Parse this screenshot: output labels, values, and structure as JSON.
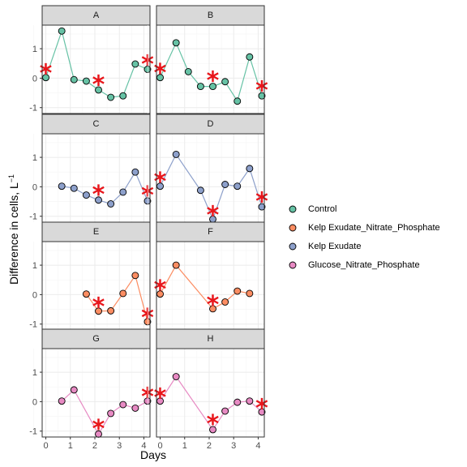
{
  "chart_data": {
    "type": "line",
    "xlabel": "Days",
    "ylabel_main": "Difference in cells, L",
    "ylabel_sup": "−1",
    "xlim": [
      -0.15,
      4.25
    ],
    "ylim": [
      -1.2,
      1.8
    ],
    "x_ticks": [
      0,
      1,
      2,
      3,
      4
    ],
    "y_ticks": [
      -1,
      0,
      1
    ],
    "grid": true,
    "legend_position": "right",
    "legend": [
      {
        "key": "control",
        "label": "Control",
        "color": "#66c2a5"
      },
      {
        "key": "kenp",
        "label": "Kelp Exudate_Nitrate_Phosphate",
        "color": "#fc8d62"
      },
      {
        "key": "ke",
        "label": "Kelp Exudate",
        "color": "#8da0cb"
      },
      {
        "key": "gnp",
        "label": "Glucose_Nitrate_Phosphate",
        "color": "#e78ac3"
      }
    ],
    "marker_color": "#e8161b",
    "panels": [
      {
        "label": "A",
        "series": "control",
        "x": [
          0,
          0.65,
          1.15,
          1.65,
          2.15,
          2.65,
          3.15,
          3.65,
          4.15
        ],
        "y": [
          0.02,
          1.6,
          -0.05,
          -0.1,
          -0.4,
          -0.65,
          -0.6,
          0.48,
          0.3
        ],
        "stars": [
          [
            0,
            0.2
          ],
          [
            2.15,
            -0.18
          ],
          [
            4.15,
            0.5
          ]
        ]
      },
      {
        "label": "B",
        "series": "control",
        "x": [
          0,
          0.65,
          1.15,
          1.65,
          2.15,
          2.65,
          3.15,
          3.65,
          4.15
        ],
        "y": [
          0.02,
          1.2,
          0.22,
          -0.28,
          -0.28,
          -0.12,
          -0.78,
          0.72,
          -0.6
        ],
        "stars": [
          [
            0,
            0.22
          ],
          [
            2.15,
            -0.04
          ],
          [
            4.15,
            -0.38
          ]
        ]
      },
      {
        "label": "C",
        "series": "ke",
        "x": [
          0.65,
          1.15,
          1.65,
          2.15,
          2.65,
          3.15,
          3.65,
          4.15
        ],
        "y": [
          0.02,
          -0.05,
          -0.28,
          -0.45,
          -0.58,
          -0.18,
          0.5,
          -0.48
        ],
        "stars": [
          [
            2.15,
            -0.22
          ],
          [
            4.15,
            -0.25
          ]
        ]
      },
      {
        "label": "D",
        "series": "ke",
        "x": [
          0,
          0.65,
          1.65,
          2.15,
          2.65,
          3.15,
          3.65,
          4.15
        ],
        "y": [
          0.02,
          1.1,
          -0.12,
          -1.1,
          0.08,
          0.02,
          0.62,
          -0.68
        ],
        "stars": [
          [
            0,
            0.22
          ],
          [
            2.15,
            -0.92
          ],
          [
            4.15,
            -0.45
          ]
        ]
      },
      {
        "label": "E",
        "series": "kenp",
        "x": [
          1.65,
          2.15,
          2.65,
          3.15,
          3.65,
          4.15
        ],
        "y": [
          0.02,
          -0.56,
          -0.55,
          0.04,
          0.65,
          -0.92
        ],
        "stars": [
          [
            2.15,
            -0.38
          ],
          [
            4.15,
            -0.75
          ]
        ]
      },
      {
        "label": "F",
        "series": "kenp",
        "x": [
          0,
          0.65,
          2.15,
          2.65,
          3.15,
          3.65
        ],
        "y": [
          0.02,
          1.0,
          -0.48,
          -0.25,
          0.12,
          0.04
        ],
        "stars": [
          [
            0,
            0.22
          ],
          [
            2.15,
            -0.3
          ]
        ]
      },
      {
        "label": "G",
        "series": "gnp",
        "x": [
          0.65,
          1.15,
          2.15,
          2.65,
          3.15,
          3.65,
          4.15
        ],
        "y": [
          0.02,
          0.4,
          -1.1,
          -0.4,
          -0.1,
          -0.22,
          0.02
        ],
        "stars": [
          [
            2.15,
            -0.88
          ],
          [
            4.15,
            0.2
          ]
        ]
      },
      {
        "label": "H",
        "series": "gnp",
        "x": [
          0,
          0.65,
          2.15,
          2.65,
          3.15,
          3.65,
          4.15
        ],
        "y": [
          0.02,
          0.85,
          -0.95,
          -0.32,
          -0.02,
          0.02,
          -0.35
        ],
        "stars": [
          [
            0,
            0.18
          ],
          [
            2.15,
            -0.72
          ],
          [
            4.15,
            -0.18
          ]
        ]
      }
    ]
  }
}
